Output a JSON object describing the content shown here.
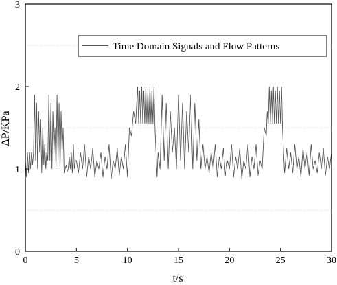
{
  "chart_data": {
    "type": "line",
    "title": "",
    "xlabel": "t/s",
    "ylabel": "ΔP/KPa",
    "xlim": [
      0,
      30
    ],
    "ylim": [
      0,
      3
    ],
    "x_ticks": [
      0,
      5,
      10,
      15,
      20,
      25,
      30
    ],
    "x_tick_labels": [
      "0",
      "5",
      "10",
      "15",
      "20",
      "25",
      "30"
    ],
    "y_ticks": [
      0,
      1,
      2,
      3
    ],
    "y_tick_labels": [
      "0",
      "1",
      "2",
      "3"
    ],
    "grid": "horizontal dotted at 0.5, 1.5, 2.5",
    "legend_position": "top-right",
    "line_color": "#555555",
    "series": [
      {
        "name": "Time Domain Signals and Flow Patterns",
        "x": [
          0.0,
          0.1,
          0.2,
          0.3,
          0.4,
          0.5,
          0.6,
          0.7,
          0.8,
          0.9,
          1.0,
          1.1,
          1.2,
          1.3,
          1.4,
          1.5,
          1.6,
          1.7,
          1.8,
          1.9,
          2.0,
          2.1,
          2.2,
          2.3,
          2.4,
          2.5,
          2.6,
          2.7,
          2.8,
          2.9,
          3.0,
          3.1,
          3.2,
          3.3,
          3.4,
          3.5,
          3.6,
          3.7,
          3.8,
          3.9,
          4.0,
          4.1,
          4.2,
          4.3,
          4.4,
          4.5,
          4.6,
          4.7,
          4.8,
          4.9,
          5.0,
          5.2,
          5.4,
          5.6,
          5.8,
          6.0,
          6.2,
          6.4,
          6.6,
          6.8,
          7.0,
          7.2,
          7.4,
          7.6,
          7.8,
          8.0,
          8.2,
          8.4,
          8.6,
          8.8,
          9.0,
          9.2,
          9.4,
          9.6,
          9.8,
          10.0,
          10.2,
          10.4,
          10.6,
          10.8,
          11.0,
          11.1,
          11.2,
          11.3,
          11.4,
          11.5,
          11.6,
          11.7,
          11.8,
          11.9,
          12.0,
          12.1,
          12.2,
          12.3,
          12.4,
          12.5,
          12.6,
          12.7,
          12.8,
          12.9,
          13.0,
          13.2,
          13.4,
          13.6,
          13.8,
          14.0,
          14.2,
          14.4,
          14.6,
          14.8,
          15.0,
          15.2,
          15.4,
          15.6,
          15.8,
          16.0,
          16.2,
          16.4,
          16.6,
          16.8,
          17.0,
          17.2,
          17.4,
          17.6,
          17.8,
          18.0,
          18.2,
          18.4,
          18.6,
          18.8,
          19.0,
          19.2,
          19.4,
          19.6,
          19.8,
          20.0,
          20.2,
          20.4,
          20.6,
          20.8,
          21.0,
          21.2,
          21.4,
          21.6,
          21.8,
          22.0,
          22.2,
          22.4,
          22.6,
          22.8,
          23.0,
          23.2,
          23.4,
          23.6,
          23.7,
          23.8,
          23.9,
          24.0,
          24.1,
          24.2,
          24.3,
          24.4,
          24.5,
          24.6,
          24.7,
          24.8,
          24.9,
          25.0,
          25.1,
          25.2,
          25.3,
          25.4,
          25.6,
          25.8,
          26.0,
          26.2,
          26.4,
          26.6,
          26.8,
          27.0,
          27.2,
          27.4,
          27.6,
          27.8,
          28.0,
          28.2,
          28.4,
          28.6,
          28.8,
          29.0,
          29.2,
          29.4,
          29.6,
          29.8,
          30.0
        ],
        "values": [
          1.1,
          0.9,
          1.2,
          0.95,
          1.2,
          1.0,
          1.2,
          1.05,
          1.2,
          1.9,
          1.1,
          1.8,
          1.0,
          1.7,
          1.2,
          1.6,
          0.95,
          1.5,
          1.05,
          1.3,
          1.0,
          1.2,
          1.1,
          1.9,
          1.1,
          1.8,
          1.0,
          1.7,
          1.2,
          1.5,
          1.0,
          1.9,
          1.1,
          1.8,
          1.0,
          1.7,
          1.2,
          1.5,
          0.95,
          1.0,
          1.05,
          0.97,
          1.0,
          1.15,
          1.0,
          1.2,
          0.95,
          1.3,
          1.0,
          1.1,
          1.1,
          0.95,
          1.2,
          1.0,
          1.3,
          0.9,
          1.15,
          1.0,
          1.25,
          0.9,
          1.1,
          1.0,
          1.2,
          0.9,
          1.15,
          1.0,
          1.3,
          0.88,
          1.1,
          1.0,
          1.25,
          0.92,
          1.15,
          1.0,
          1.3,
          0.9,
          1.5,
          1.4,
          1.7,
          1.55,
          2.0,
          1.55,
          1.95,
          1.55,
          2.0,
          1.55,
          1.95,
          1.55,
          2.0,
          1.55,
          1.95,
          1.55,
          2.0,
          1.55,
          1.95,
          1.55,
          2.0,
          1.5,
          1.2,
          0.9,
          1.2,
          1.0,
          1.9,
          1.1,
          1.8,
          1.0,
          1.7,
          1.2,
          1.5,
          1.0,
          1.9,
          1.1,
          1.8,
          1.0,
          1.7,
          1.2,
          1.9,
          1.0,
          1.8,
          1.1,
          1.6,
          1.0,
          1.3,
          1.0,
          1.15,
          0.95,
          1.2,
          1.0,
          1.3,
          0.9,
          1.15,
          1.0,
          1.25,
          0.92,
          1.1,
          1.0,
          1.3,
          0.9,
          1.15,
          1.0,
          1.25,
          0.88,
          1.1,
          1.0,
          1.3,
          0.9,
          1.15,
          1.0,
          1.3,
          0.92,
          1.1,
          1.0,
          1.5,
          1.4,
          1.7,
          1.55,
          2.0,
          1.55,
          1.95,
          1.55,
          2.0,
          1.55,
          1.95,
          1.55,
          2.0,
          1.55,
          1.95,
          1.55,
          2.0,
          1.5,
          1.2,
          0.95,
          1.25,
          1.0,
          1.2,
          0.95,
          1.3,
          1.0,
          1.15,
          0.9,
          1.25,
          1.0,
          1.2,
          0.92,
          1.3,
          1.0,
          1.1,
          0.95,
          1.2,
          1.0,
          1.25,
          0.92,
          1.15,
          1.0,
          1.2
        ]
      }
    ]
  }
}
